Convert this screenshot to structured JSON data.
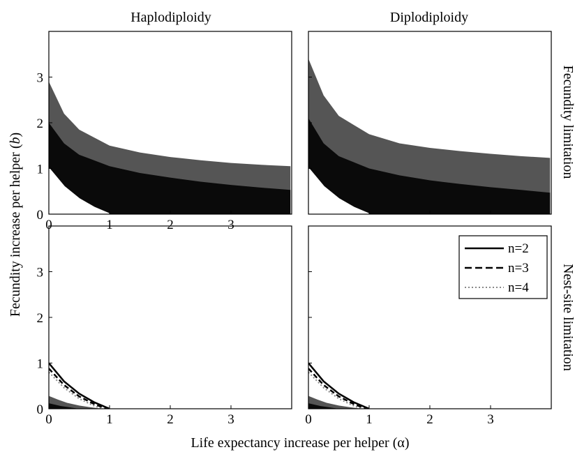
{
  "figure": {
    "column_titles": [
      "Haplodiploidy",
      "Diplodiploidy"
    ],
    "row_titles": [
      "Fecundity limitation",
      "Nest-site limitation"
    ],
    "ylabel": {
      "main": "Fecundity increase per helper (",
      "symbol": "b",
      "end": ")"
    },
    "xlabel": {
      "main": "Life expectancy increase per helper (",
      "symbol": "α",
      "end": ")"
    }
  },
  "legend": {
    "entries": [
      {
        "label": "n=2",
        "style": "solid"
      },
      {
        "label": "n=3",
        "style": "dashed"
      },
      {
        "label": "n=4",
        "style": "dotted"
      }
    ]
  },
  "colors": {
    "background": "#ffffff",
    "black_region": "#0a0a0a",
    "grey_region": "#555555",
    "n2": "#000000",
    "n3": "#000000",
    "n4": "#888888"
  },
  "chart_data": [
    {
      "type": "area",
      "panel": "Haplodiploidy / Fecundity limitation",
      "xlim": [
        0,
        4
      ],
      "ylim": [
        0,
        4
      ],
      "xticks": [
        "0",
        "1",
        "2",
        "3"
      ],
      "yticks": [
        "0",
        "1",
        "2",
        "3"
      ],
      "grey_upper": [
        [
          0,
          2.9
        ],
        [
          0.25,
          2.2
        ],
        [
          0.5,
          1.85
        ],
        [
          1,
          1.5
        ],
        [
          1.5,
          1.35
        ],
        [
          2,
          1.25
        ],
        [
          2.5,
          1.18
        ],
        [
          3,
          1.12
        ],
        [
          3.5,
          1.08
        ],
        [
          3.98,
          1.05
        ]
      ],
      "black_upper": [
        [
          0,
          2.0
        ],
        [
          0.25,
          1.55
        ],
        [
          0.5,
          1.3
        ],
        [
          1,
          1.05
        ],
        [
          1.5,
          0.9
        ],
        [
          2,
          0.8
        ],
        [
          2.5,
          0.71
        ],
        [
          3,
          0.64
        ],
        [
          3.5,
          0.58
        ],
        [
          3.98,
          0.53
        ]
      ],
      "white_upper": [
        [
          0,
          1.0
        ],
        [
          0.25,
          0.6
        ],
        [
          0.5,
          0.33
        ],
        [
          0.75,
          0.14
        ],
        [
          1,
          0.0
        ]
      ],
      "series": [
        {
          "name": "n=2",
          "points": [
            [
              0,
              1.0
            ],
            [
              0.25,
              0.6
            ],
            [
              0.5,
              0.33
            ],
            [
              0.75,
              0.14
            ],
            [
              1,
              0.0
            ]
          ]
        },
        {
          "name": "n=3",
          "points": [
            [
              0,
              0.88
            ],
            [
              0.25,
              0.52
            ],
            [
              0.5,
              0.27
            ],
            [
              0.75,
              0.1
            ],
            [
              0.95,
              0.0
            ]
          ]
        },
        {
          "name": "n=4",
          "points": [
            [
              0,
              0.8
            ],
            [
              0.25,
              0.46
            ],
            [
              0.5,
              0.22
            ],
            [
              0.75,
              0.06
            ],
            [
              0.88,
              0.0
            ]
          ]
        }
      ]
    },
    {
      "type": "area",
      "panel": "Diplodiploidy / Fecundity limitation",
      "xlim": [
        0,
        4
      ],
      "ylim": [
        0,
        4
      ],
      "xticks": [],
      "yticks": [],
      "grey_upper": [
        [
          0,
          3.4
        ],
        [
          0.25,
          2.6
        ],
        [
          0.5,
          2.15
        ],
        [
          1,
          1.75
        ],
        [
          1.5,
          1.55
        ],
        [
          2,
          1.45
        ],
        [
          2.5,
          1.38
        ],
        [
          3,
          1.32
        ],
        [
          3.5,
          1.27
        ],
        [
          3.98,
          1.23
        ]
      ],
      "black_upper": [
        [
          0,
          2.1
        ],
        [
          0.25,
          1.55
        ],
        [
          0.5,
          1.27
        ],
        [
          1,
          1.0
        ],
        [
          1.5,
          0.85
        ],
        [
          2,
          0.74
        ],
        [
          2.5,
          0.66
        ],
        [
          3,
          0.59
        ],
        [
          3.5,
          0.53
        ],
        [
          3.98,
          0.47
        ]
      ],
      "white_upper": [
        [
          0,
          1.0
        ],
        [
          0.25,
          0.6
        ],
        [
          0.5,
          0.33
        ],
        [
          0.75,
          0.14
        ],
        [
          1,
          0.0
        ]
      ],
      "series": [
        {
          "name": "n=2",
          "points": [
            [
              0,
              1.0
            ],
            [
              0.25,
              0.6
            ],
            [
              0.5,
              0.33
            ],
            [
              0.75,
              0.14
            ],
            [
              1,
              0.0
            ]
          ]
        },
        {
          "name": "n=3",
          "points": [
            [
              0,
              0.88
            ],
            [
              0.25,
              0.52
            ],
            [
              0.5,
              0.27
            ],
            [
              0.75,
              0.1
            ],
            [
              0.95,
              0.0
            ]
          ]
        },
        {
          "name": "n=4",
          "points": [
            [
              0,
              0.8
            ],
            [
              0.25,
              0.46
            ],
            [
              0.5,
              0.22
            ],
            [
              0.75,
              0.06
            ],
            [
              0.88,
              0.0
            ]
          ]
        }
      ]
    },
    {
      "type": "area",
      "panel": "Haplodiploidy / Nest-site limitation",
      "xlim": [
        0,
        4
      ],
      "ylim": [
        0,
        4
      ],
      "xticks": [
        "0",
        "1",
        "2",
        "3"
      ],
      "yticks": [
        "0",
        "1",
        "2",
        "3"
      ],
      "white_upper": [
        [
          0,
          1.0
        ],
        [
          0.25,
          0.6
        ],
        [
          0.5,
          0.33
        ],
        [
          0.75,
          0.14
        ],
        [
          1,
          0.0
        ]
      ],
      "grey_upper": [
        [
          0,
          0.28
        ],
        [
          0.15,
          0.2
        ],
        [
          0.3,
          0.13
        ],
        [
          0.5,
          0.07
        ],
        [
          0.7,
          0.03
        ],
        [
          0.88,
          0.0
        ]
      ],
      "black_upper": [
        [
          0,
          0.12
        ],
        [
          0.1,
          0.09
        ],
        [
          0.2,
          0.06
        ],
        [
          0.3,
          0.04
        ],
        [
          0.4,
          0.02
        ],
        [
          0.5,
          0.0
        ]
      ],
      "series": [
        {
          "name": "n=2",
          "points": [
            [
              0,
              1.0
            ],
            [
              0.25,
              0.6
            ],
            [
              0.5,
              0.33
            ],
            [
              0.75,
              0.14
            ],
            [
              1,
              0.0
            ]
          ]
        },
        {
          "name": "n=3",
          "points": [
            [
              0,
              0.88
            ],
            [
              0.25,
              0.52
            ],
            [
              0.5,
              0.27
            ],
            [
              0.75,
              0.1
            ],
            [
              0.95,
              0.0
            ]
          ]
        },
        {
          "name": "n=4",
          "points": [
            [
              0,
              0.8
            ],
            [
              0.25,
              0.46
            ],
            [
              0.5,
              0.22
            ],
            [
              0.75,
              0.06
            ],
            [
              0.88,
              0.0
            ]
          ]
        }
      ]
    },
    {
      "type": "area",
      "panel": "Diplodiploidy / Nest-site limitation",
      "xlim": [
        0,
        4
      ],
      "ylim": [
        0,
        4
      ],
      "xticks": [
        "0",
        "1",
        "2",
        "3"
      ],
      "yticks": [],
      "white_upper": [
        [
          0,
          1.0
        ],
        [
          0.25,
          0.6
        ],
        [
          0.5,
          0.33
        ],
        [
          0.75,
          0.14
        ],
        [
          1,
          0.0
        ]
      ],
      "grey_upper": [
        [
          0,
          0.28
        ],
        [
          0.15,
          0.2
        ],
        [
          0.3,
          0.13
        ],
        [
          0.5,
          0.07
        ],
        [
          0.7,
          0.03
        ],
        [
          0.88,
          0.0
        ]
      ],
      "black_upper": [
        [
          0,
          0.12
        ],
        [
          0.1,
          0.09
        ],
        [
          0.2,
          0.06
        ],
        [
          0.3,
          0.04
        ],
        [
          0.4,
          0.02
        ],
        [
          0.5,
          0.0
        ]
      ],
      "series": [
        {
          "name": "n=2",
          "points": [
            [
              0,
              1.0
            ],
            [
              0.25,
              0.6
            ],
            [
              0.5,
              0.33
            ],
            [
              0.75,
              0.14
            ],
            [
              1,
              0.0
            ]
          ]
        },
        {
          "name": "n=3",
          "points": [
            [
              0,
              0.88
            ],
            [
              0.25,
              0.52
            ],
            [
              0.5,
              0.27
            ],
            [
              0.75,
              0.1
            ],
            [
              0.95,
              0.0
            ]
          ]
        },
        {
          "name": "n=4",
          "points": [
            [
              0,
              0.8
            ],
            [
              0.25,
              0.46
            ],
            [
              0.5,
              0.22
            ],
            [
              0.75,
              0.06
            ],
            [
              0.88,
              0.0
            ]
          ]
        }
      ]
    }
  ]
}
